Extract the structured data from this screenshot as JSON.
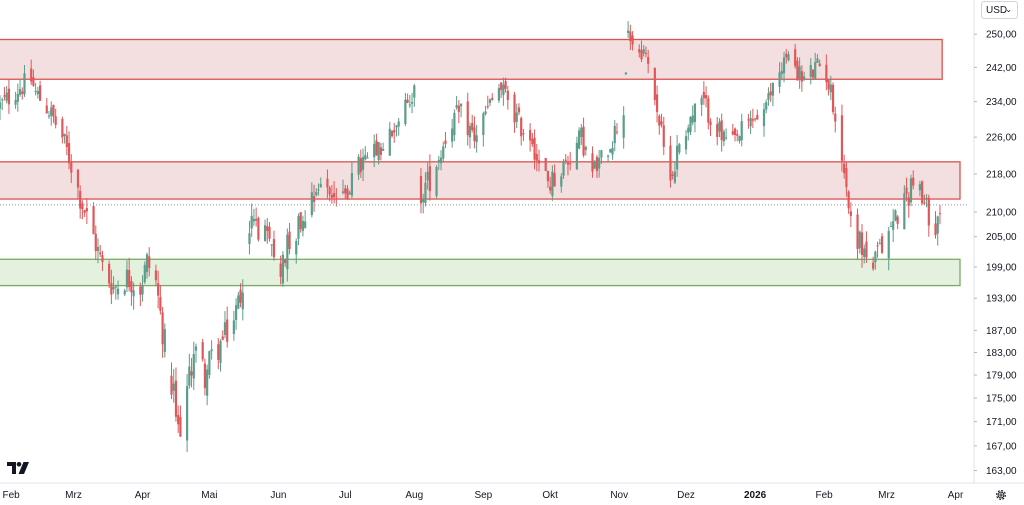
{
  "currency": {
    "label": "USD",
    "chevron_icon": "chevron-down-icon"
  },
  "icons": {
    "logo": "tradingview-logo",
    "settings": "gear-icon"
  },
  "colors": {
    "up": "#5b9c8a",
    "down": "#e0575a",
    "resistance_fill": "#f1d9d9",
    "resistance_border": "#d9534f",
    "support_fill": "#e1efd9",
    "support_border": "#73ad5e",
    "grid": "#c8c8c8"
  },
  "chart_data": {
    "type": "candlestick",
    "scale": "log",
    "y_range": [
      161.5,
      256.5
    ],
    "y_ticks": [
      {
        "value": 250,
        "label": "250,00"
      },
      {
        "value": 242,
        "label": "242,00"
      },
      {
        "value": 234,
        "label": "234,00"
      },
      {
        "value": 226,
        "label": "226,00"
      },
      {
        "value": 218,
        "label": "218,00"
      },
      {
        "value": 210,
        "label": "210,00"
      },
      {
        "value": 205,
        "label": "205,00"
      },
      {
        "value": 199,
        "label": "199,00"
      },
      {
        "value": 193,
        "label": "193,00"
      },
      {
        "value": 187,
        "label": "187,00"
      },
      {
        "value": 183,
        "label": "183,00"
      },
      {
        "value": 179,
        "label": "179,00"
      },
      {
        "value": 175,
        "label": "175,00"
      },
      {
        "value": 171,
        "label": "171,00"
      },
      {
        "value": 167,
        "label": "167,00"
      },
      {
        "value": 163,
        "label": "163,00"
      }
    ],
    "x_range": [
      "2025-01-27",
      "2026-04-03"
    ],
    "x_ticks": [
      {
        "date": "2025-02-01",
        "label": "Feb",
        "bold": false
      },
      {
        "date": "2025-03-01",
        "label": "Mrz",
        "bold": false
      },
      {
        "date": "2025-04-01",
        "label": "Apr",
        "bold": false
      },
      {
        "date": "2025-05-01",
        "label": "Mai",
        "bold": false
      },
      {
        "date": "2025-06-01",
        "label": "Jun",
        "bold": false
      },
      {
        "date": "2025-07-01",
        "label": "Jul",
        "bold": false
      },
      {
        "date": "2025-08-01",
        "label": "Aug",
        "bold": false
      },
      {
        "date": "2025-09-01",
        "label": "Sep",
        "bold": false
      },
      {
        "date": "2025-10-01",
        "label": "Okt",
        "bold": false
      },
      {
        "date": "2025-11-01",
        "label": "Nov",
        "bold": false
      },
      {
        "date": "2025-12-01",
        "label": "Dez",
        "bold": false
      },
      {
        "date": "2026-01-01",
        "label": "2026",
        "bold": true
      },
      {
        "date": "2026-02-01",
        "label": "Feb",
        "bold": false
      },
      {
        "date": "2026-03-01",
        "label": "Mrz",
        "bold": false
      },
      {
        "date": "2026-04-01",
        "label": "Apr",
        "bold": false
      }
    ],
    "zones": [
      {
        "kind": "resistance",
        "from": 239.2,
        "to": 248.7,
        "end_date": "2026-03-26"
      },
      {
        "kind": "resistance",
        "from": 212.7,
        "to": 220.6,
        "end_date": "2026-04-03"
      },
      {
        "kind": "support",
        "from": 195.4,
        "to": 200.5,
        "end_date": "2026-04-03"
      }
    ],
    "last_price": 211.5,
    "anchors": [
      [
        "2025-01-27",
        233
      ],
      [
        "2025-02-04",
        237
      ],
      [
        "2025-02-10",
        239
      ],
      [
        "2025-02-12",
        236
      ],
      [
        "2025-02-18",
        232
      ],
      [
        "2025-02-24",
        226
      ],
      [
        "2025-02-28",
        220
      ],
      [
        "2025-03-04",
        213
      ],
      [
        "2025-03-10",
        205
      ],
      [
        "2025-03-14",
        199
      ],
      [
        "2025-03-19",
        195
      ],
      [
        "2025-03-25",
        197
      ],
      [
        "2025-03-31",
        195
      ],
      [
        "2025-04-03",
        200
      ],
      [
        "2025-04-07",
        196
      ],
      [
        "2025-04-10",
        187
      ],
      [
        "2025-04-15",
        175
      ],
      [
        "2025-04-17",
        169
      ],
      [
        "2025-04-22",
        178
      ],
      [
        "2025-04-24",
        184
      ],
      [
        "2025-04-29",
        179
      ],
      [
        "2025-05-02",
        182
      ],
      [
        "2025-05-07",
        185
      ],
      [
        "2025-05-12",
        189
      ],
      [
        "2025-05-15",
        194
      ],
      [
        "2025-05-20",
        208
      ],
      [
        "2025-05-23",
        207
      ],
      [
        "2025-05-28",
        203
      ],
      [
        "2025-06-02",
        199
      ],
      [
        "2025-06-06",
        205
      ],
      [
        "2025-06-11",
        208
      ],
      [
        "2025-06-16",
        214
      ],
      [
        "2025-06-20",
        216
      ],
      [
        "2025-06-25",
        214
      ],
      [
        "2025-06-30",
        212
      ],
      [
        "2025-07-03",
        216
      ],
      [
        "2025-07-08",
        220
      ],
      [
        "2025-07-14",
        222
      ],
      [
        "2025-07-18",
        223
      ],
      [
        "2025-07-24",
        229
      ],
      [
        "2025-07-29",
        233
      ],
      [
        "2025-08-01",
        237
      ],
      [
        "2025-08-04",
        214
      ],
      [
        "2025-08-08",
        217
      ],
      [
        "2025-08-13",
        223
      ],
      [
        "2025-08-18",
        230
      ],
      [
        "2025-08-22",
        231
      ],
      [
        "2025-08-28",
        226
      ],
      [
        "2025-09-03",
        232
      ],
      [
        "2025-09-08",
        237
      ],
      [
        "2025-09-12",
        235
      ],
      [
        "2025-09-17",
        229
      ],
      [
        "2025-09-23",
        226
      ],
      [
        "2025-09-26",
        219
      ],
      [
        "2025-10-01",
        216
      ],
      [
        "2025-10-06",
        219
      ],
      [
        "2025-10-10",
        222
      ],
      [
        "2025-10-15",
        226
      ],
      [
        "2025-10-20",
        218
      ],
      [
        "2025-10-24",
        221
      ],
      [
        "2025-10-29",
        226
      ],
      [
        "2025-11-03",
        232
      ],
      [
        "2025-11-05",
        252
      ],
      [
        "2025-11-07",
        248
      ],
      [
        "2025-11-12",
        246
      ],
      [
        "2025-11-17",
        236
      ],
      [
        "2025-11-21",
        223
      ],
      [
        "2025-11-25",
        218
      ],
      [
        "2025-11-28",
        225
      ],
      [
        "2025-12-03",
        230
      ],
      [
        "2025-12-08",
        234
      ],
      [
        "2025-12-12",
        231
      ],
      [
        "2025-12-17",
        226
      ],
      [
        "2025-12-22",
        224
      ],
      [
        "2025-12-26",
        227
      ],
      [
        "2025-12-31",
        230
      ],
      [
        "2026-01-06",
        232
      ],
      [
        "2026-01-09",
        238
      ],
      [
        "2026-01-14",
        244
      ],
      [
        "2026-01-19",
        243
      ],
      [
        "2026-01-22",
        239
      ],
      [
        "2026-01-27",
        241
      ],
      [
        "2026-02-01",
        243
      ],
      [
        "2026-02-03",
        238
      ],
      [
        "2026-02-05",
        234
      ],
      [
        "2026-02-09",
        222
      ],
      [
        "2026-02-13",
        208
      ],
      [
        "2026-02-18",
        203
      ],
      [
        "2026-02-23",
        199
      ],
      [
        "2026-02-26",
        202
      ],
      [
        "2026-03-03",
        207
      ],
      [
        "2026-03-06",
        210
      ],
      [
        "2026-03-11",
        214
      ],
      [
        "2026-03-13",
        218
      ],
      [
        "2026-03-17",
        212
      ],
      [
        "2026-03-20",
        210
      ],
      [
        "2026-03-23",
        208
      ],
      [
        "2026-03-25",
        211
      ]
    ]
  }
}
